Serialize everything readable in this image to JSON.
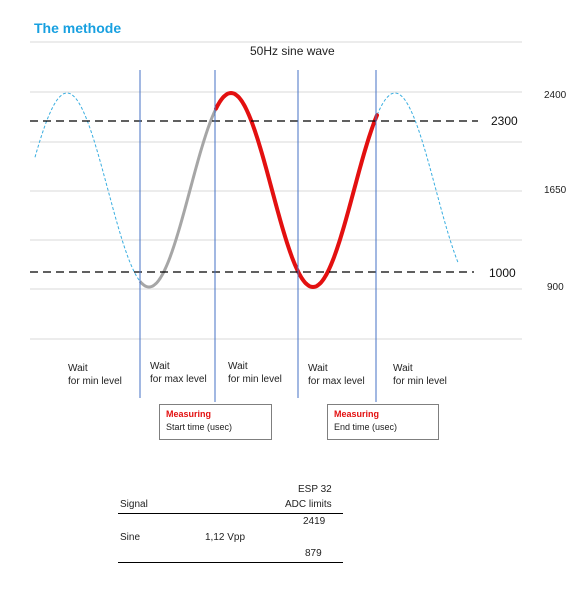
{
  "title": "The methode",
  "subtitle": "50Hz sine wave",
  "axis_ticks": [
    "2400",
    "1650",
    "900"
  ],
  "ref_levels": [
    "2300",
    "1000"
  ],
  "phases": [
    {
      "line1": "Wait",
      "line2": "for  min level"
    },
    {
      "line1": "Wait",
      "line2": "for  max level"
    },
    {
      "line1": "Wait",
      "line2": "for  min level"
    },
    {
      "line1": "Wait",
      "line2": "for  max level"
    },
    {
      "line1": "Wait",
      "line2": "for  min level"
    }
  ],
  "boxes": [
    {
      "title": "Measuring",
      "text": "Start time  (usec)"
    },
    {
      "title": "Measuring",
      "text": "End time  (usec)"
    }
  ],
  "table": {
    "head_col1": "ESP 32",
    "head_col2": "ADC limits",
    "head_signal": "Signal",
    "max_value": "2419",
    "row_signal": "Sine",
    "row_vpp": "1,12  Vpp",
    "min_value": "879"
  },
  "colors": {
    "title": "#18a0e0",
    "measure": "#e31010",
    "dashed_wave": "#3aaee0",
    "gray_wave": "#a6a6a6",
    "marker_line": "#4472c4"
  }
}
